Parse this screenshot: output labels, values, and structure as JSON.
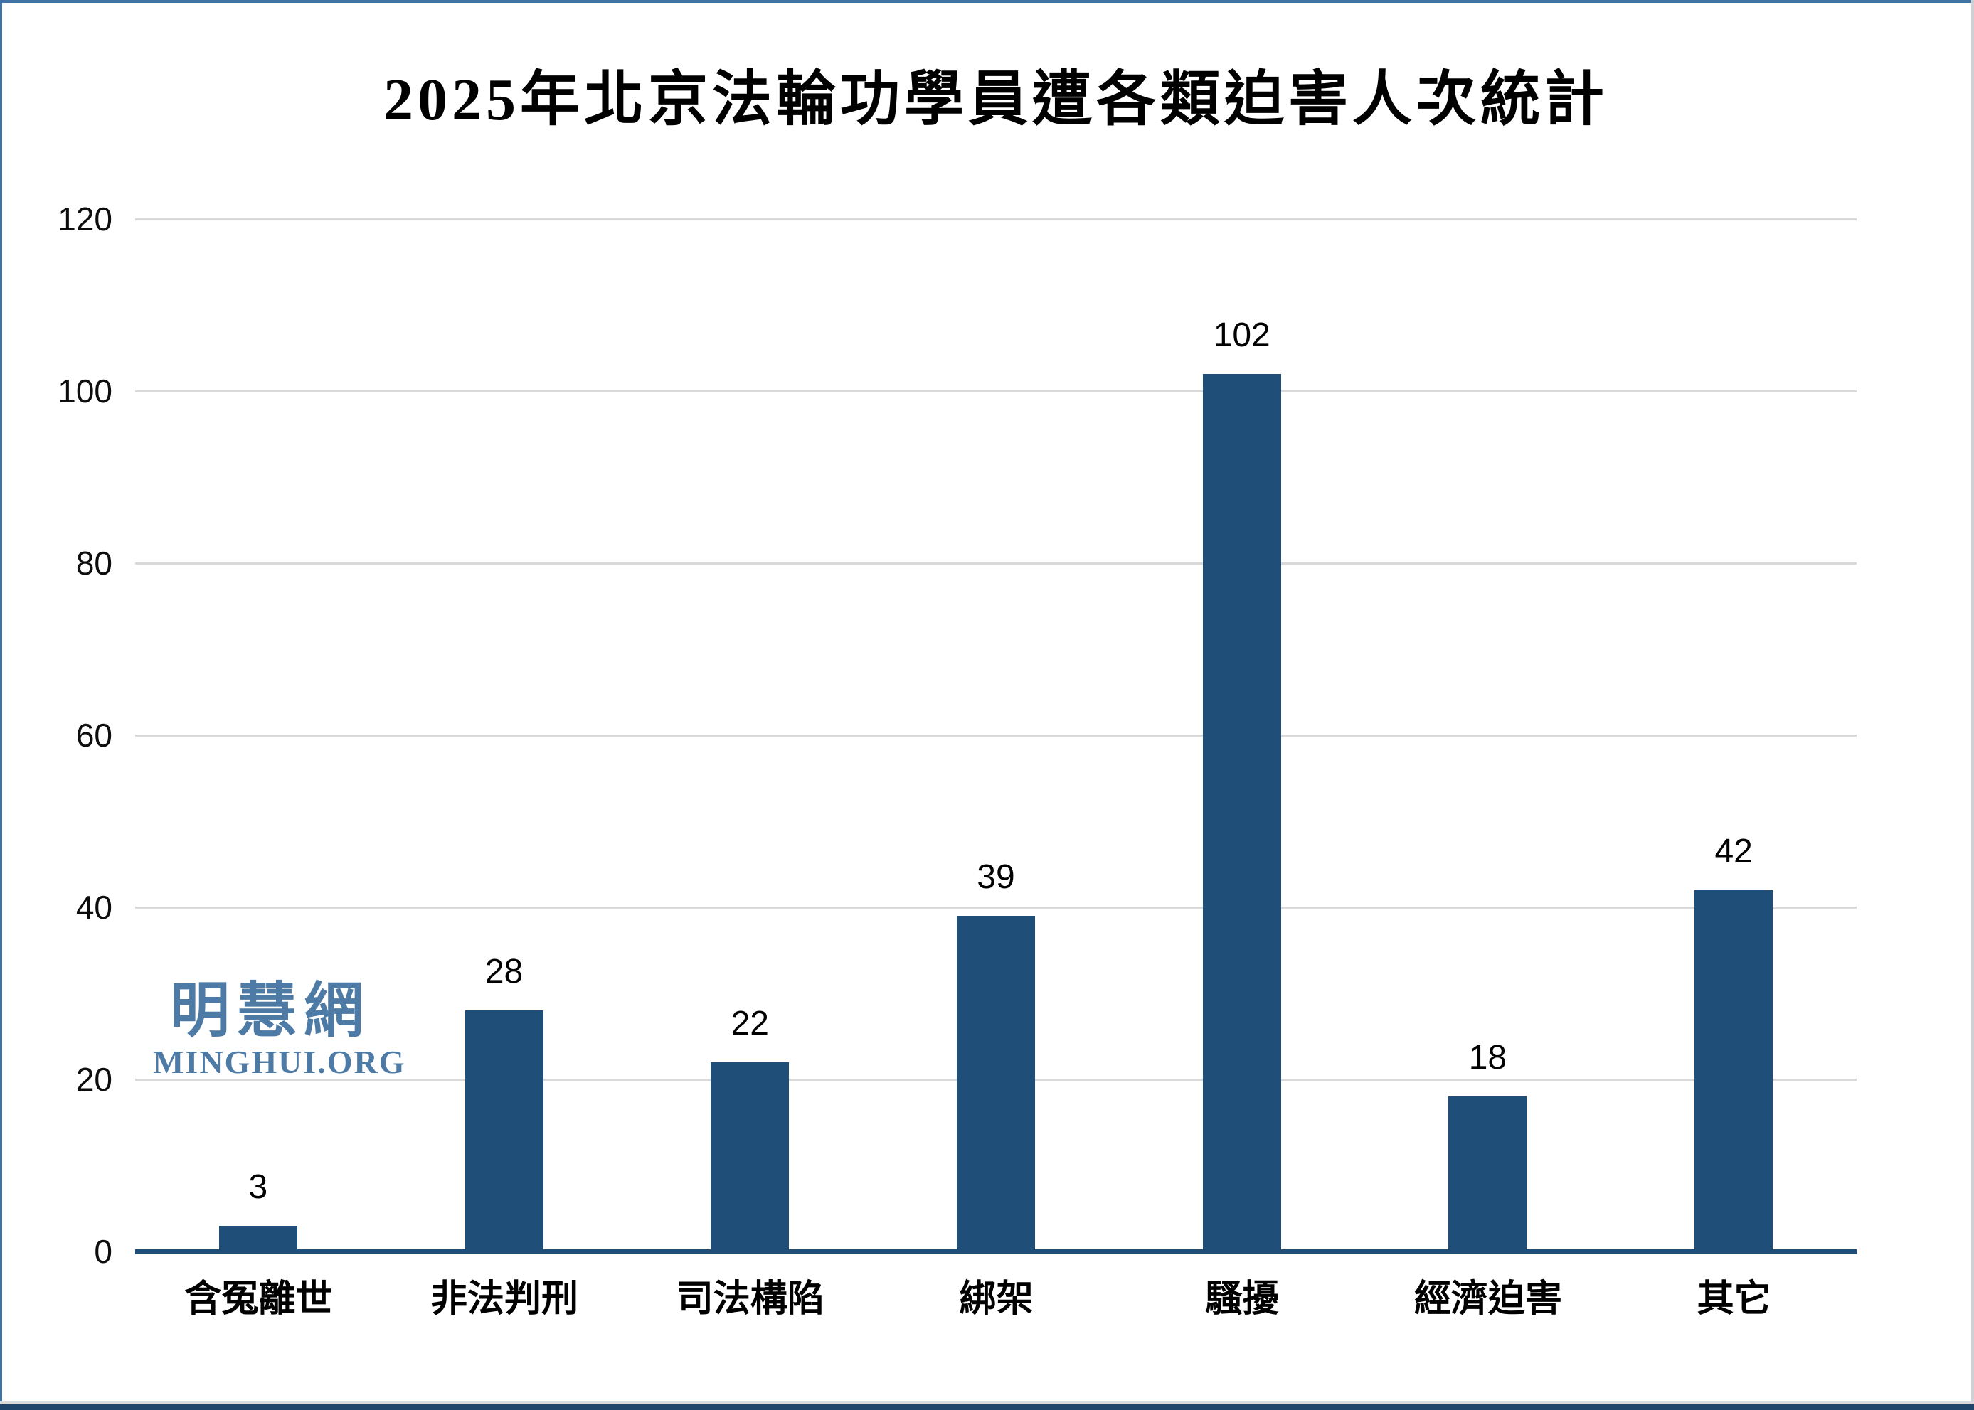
{
  "chart_data": {
    "type": "bar",
    "title": "2025年北京法輪功學員遭各類迫害人次統計",
    "categories": [
      "含冤離世",
      "非法判刑",
      "司法構陷",
      "綁架",
      "騷擾",
      "經濟迫害",
      "其它"
    ],
    "values": [
      3,
      28,
      22,
      39,
      102,
      18,
      42
    ],
    "xlabel": "",
    "ylabel": "",
    "ylim": [
      0,
      120
    ],
    "yticks": [
      0,
      20,
      40,
      60,
      80,
      100,
      120
    ],
    "grid": "horizontal-light-gray",
    "legend_position": "none",
    "bar_color": "#1F4E79",
    "axis_line_color": "#1F4E79",
    "gridline_color": "#D9D9D9",
    "text_color": "#000000"
  },
  "watermark": {
    "cjk_text": "明慧網",
    "latin_text": "MINGHUI.ORG",
    "color": "#4E7BA6"
  }
}
